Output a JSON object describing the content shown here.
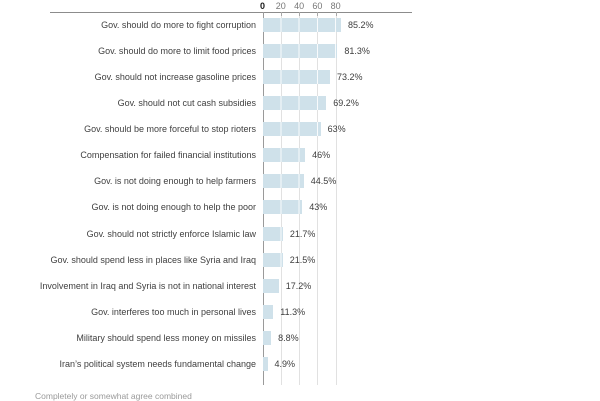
{
  "chart_data": {
    "type": "bar",
    "orientation": "horizontal",
    "title": "",
    "xlabel": "",
    "ylabel": "",
    "unit": "%",
    "axis": {
      "position": "top",
      "ticks": [
        0,
        20,
        40,
        60,
        80
      ],
      "tick_labels": [
        "0",
        "20",
        "40",
        "60",
        "80"
      ],
      "grid": true,
      "xlim_shown": [
        0,
        100
      ]
    },
    "categories": [
      "Gov. should do more to fight corruption",
      "Gov. should do more to limit food prices",
      "Gov. should not increase gasoline prices",
      "Gov. should not cut cash subsidies",
      "Gov. should be more forceful to stop rioters",
      "Compensation for failed financial institutions",
      "Gov. is not doing enough to help farmers",
      "Gov. is not doing enough to help the poor",
      "Gov. should not strictly enforce Islamic law",
      "Gov. should spend less in places like Syria and Iraq",
      "Involvement in Iraq and Syria is not in national interest",
      "Gov. interferes too much in personal lives",
      "Military should spend less money on missiles",
      "Iran’s political system needs fundamental change"
    ],
    "values": [
      85.2,
      81.3,
      73.2,
      69.2,
      63,
      46,
      44.5,
      43,
      21.7,
      21.5,
      17.2,
      11.3,
      8.8,
      4.9
    ],
    "value_labels": [
      "85.2%",
      "81.3%",
      "73.2%",
      "69.2%",
      "63%",
      "46%",
      "44.5%",
      "43%",
      "21.7%",
      "21.5%",
      "17.2%",
      "11.3%",
      "8.8%",
      "4.9%"
    ],
    "footnote_partially_cut_off": "Completely or somewhat agree combined",
    "legend": null,
    "colors": {
      "bar_fill": "#cfe1ea",
      "gridline": "#e1e1e1",
      "axis_line": "#8c8c8c",
      "zero_line": "#9a9a9a",
      "category_text": "#3f3f3f",
      "value_text": "#3d3d3d",
      "tick_text": "#777777",
      "tick_zero_text": "#1a1a1a",
      "footnote_text": "#9a9a9a",
      "background": "#ffffff"
    }
  }
}
